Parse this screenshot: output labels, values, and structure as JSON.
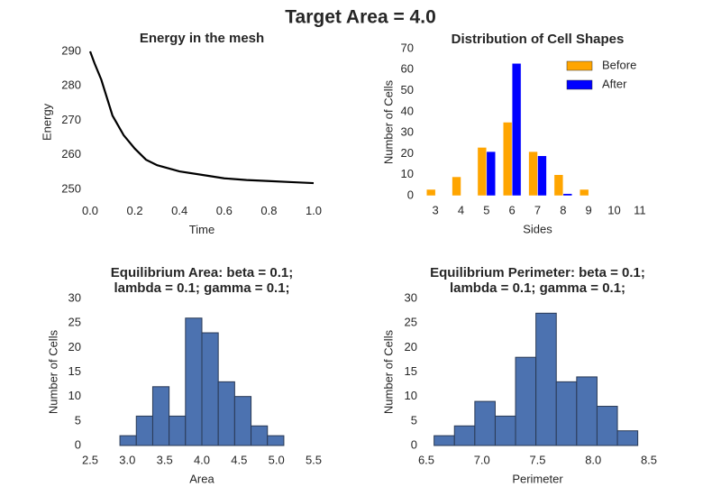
{
  "title": "Target Area = 4.0",
  "chart_data": [
    {
      "type": "line",
      "title": "Energy in the mesh",
      "xlabel": "Time",
      "ylabel": "Energy",
      "x": [
        0,
        0.02,
        0.05,
        0.1,
        0.15,
        0.2,
        0.25,
        0.3,
        0.4,
        0.5,
        0.6,
        0.7,
        0.8,
        0.9,
        1.0
      ],
      "values": [
        290,
        286.5,
        281.8,
        271.4,
        265.7,
        261.8,
        258.6,
        257,
        255.2,
        254.2,
        253.2,
        252.7,
        252.4,
        252.1,
        251.8
      ],
      "color": "#000000",
      "xlim": [
        0,
        1
      ],
      "xticks": [
        {
          "value": 0,
          "label": "0.0"
        },
        0.2,
        0.4,
        0.6,
        0.8,
        {
          "value": 1,
          "label": "1.0"
        }
      ],
      "ylim": [
        248,
        291
      ],
      "yticks": [
        250,
        260,
        270,
        280,
        290
      ],
      "grid": false
    },
    {
      "type": "bar",
      "title": "Distribution of Cell Shapes",
      "xlabel": "Sides",
      "ylabel": "Number of Cells",
      "categories": [
        "3",
        "4",
        "5",
        "6",
        "7",
        "8",
        "9",
        "10",
        "11"
      ],
      "series": [
        {
          "name": "Before",
          "color": "#ffa500",
          "values": [
            3,
            9,
            23,
            35,
            21,
            10,
            3,
            0,
            0
          ]
        },
        {
          "name": "After",
          "color": "#0000ff",
          "values": [
            0,
            0,
            21,
            63,
            19,
            1,
            0,
            0,
            0
          ]
        }
      ],
      "ylim": [
        0,
        70
      ],
      "yticks": [
        0,
        10,
        20,
        30,
        40,
        50,
        60,
        70
      ],
      "legend": "upper right",
      "grid": false
    },
    {
      "type": "histogram",
      "title": [
        "Equilibrium Area: beta = 0.1;",
        "lambda = 0.1; gamma = 0.1;"
      ],
      "xlabel": "Area",
      "ylabel": "Number of Cells",
      "bins": [
        2.9,
        3.12,
        3.34,
        3.56,
        3.78,
        4.0,
        4.22,
        4.44,
        4.66,
        4.88,
        5.1
      ],
      "values": [
        2,
        6,
        12,
        6,
        26,
        23,
        13,
        10,
        4,
        2
      ],
      "color": "#4c72b0",
      "xlim": [
        2.5,
        5.5
      ],
      "xticks": [
        2.5,
        {
          "value": 3,
          "label": "3.0"
        },
        3.5,
        {
          "value": 4,
          "label": "4.0"
        },
        4.5,
        {
          "value": 5,
          "label": "5.0"
        },
        5.5
      ],
      "ylim": [
        0,
        30
      ],
      "yticks": [
        0,
        5,
        10,
        15,
        20,
        25,
        30
      ],
      "grid": false
    },
    {
      "type": "histogram",
      "title": [
        "Equilibrium Perimeter: beta = 0.1;",
        "lambda = 0.1; gamma = 0.1;"
      ],
      "xlabel": "Perimeter",
      "ylabel": "Number of Cells",
      "bins": [
        6.57,
        6.753,
        6.936,
        7.119,
        7.302,
        7.485,
        7.668,
        7.851,
        8.034,
        8.217,
        8.4
      ],
      "values": [
        2,
        4,
        9,
        6,
        18,
        27,
        13,
        14,
        8,
        3
      ],
      "color": "#4c72b0",
      "xlim": [
        6.5,
        8.5
      ],
      "xticks": [
        6.5,
        {
          "value": 7,
          "label": "7.0"
        },
        7.5,
        {
          "value": 8,
          "label": "8.0"
        },
        8.5
      ],
      "ylim": [
        0,
        30
      ],
      "yticks": [
        0,
        5,
        10,
        15,
        20,
        25,
        30
      ],
      "grid": false
    }
  ]
}
